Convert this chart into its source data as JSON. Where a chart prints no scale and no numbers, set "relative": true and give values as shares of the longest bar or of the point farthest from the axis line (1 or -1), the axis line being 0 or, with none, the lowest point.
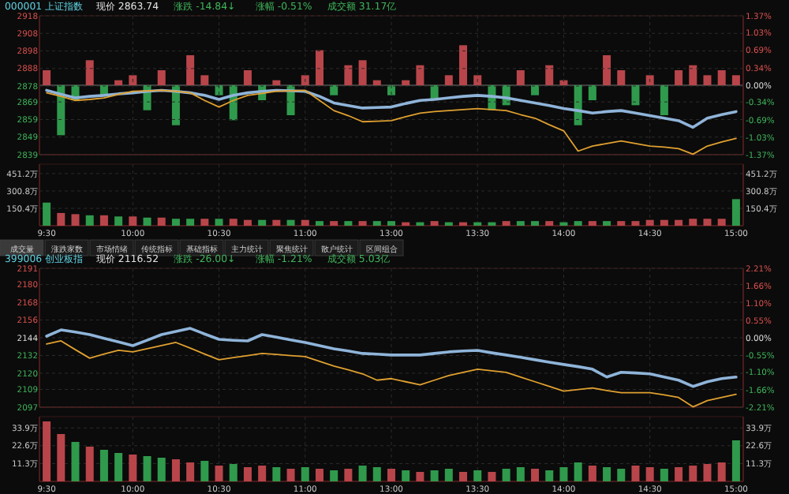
{
  "chart_data": [
    {
      "type": "line",
      "title": "000001 上证指数",
      "annotations": [
        "现价 2863.74",
        "涨跌 -14.84↓",
        "涨幅 -0.51%",
        "成交额 31.17亿"
      ],
      "categories": [
        null,
        null,
        null,
        null,
        null,
        null,
        null,
        null,
        null,
        null,
        null,
        null,
        null,
        null,
        null,
        null,
        null,
        null,
        null,
        null,
        null,
        null,
        null,
        null,
        null,
        null,
        null,
        null,
        null,
        null,
        null,
        null,
        null,
        null,
        null,
        null,
        null,
        null,
        null,
        null,
        null,
        null,
        null,
        null,
        null,
        null,
        null,
        null,
        null
      ],
      "tick_labels": "y",
      "ylim": [
        2839,
        2918
      ],
      "yticks": [
        2839,
        2849,
        2859,
        2869,
        2878,
        2888,
        2898,
        2908,
        2918
      ],
      "y2lim": [
        -1.37,
        1.37
      ],
      "y2ticks": [
        {
          "value": -1.37,
          "label": "-1.37%"
        },
        {
          "value": -1.03,
          "label": "-1.03%"
        },
        {
          "value": -0.69,
          "label": "-0.69%"
        },
        {
          "value": -0.34,
          "label": "-0.34%"
        },
        {
          "value": 0,
          "label": "0.00%"
        },
        {
          "value": 0.34,
          "label": "0.34%"
        },
        {
          "value": 0.69,
          "label": "0.69%"
        },
        {
          "value": 1.03,
          "label": "1.03%"
        },
        {
          "value": 1.37,
          "label": "1.37%"
        }
      ],
      "grid": true,
      "series": [
        {
          "axis": "y2",
          "color": "#8fb4d9",
          "values": [
            -0.1,
            -0.18,
            -0.25,
            -0.22,
            -0.2,
            -0.17,
            -0.15,
            -0.12,
            -0.1,
            -0.12,
            -0.15,
            -0.2,
            -0.28,
            -0.2,
            -0.15,
            -0.12,
            -0.1,
            -0.11,
            -0.12,
            -0.22,
            -0.35,
            -0.4,
            -0.45,
            -0.44,
            -0.43,
            -0.36,
            -0.3,
            -0.28,
            -0.25,
            -0.22,
            -0.2,
            -0.22,
            -0.25,
            -0.3,
            -0.35,
            -0.4,
            -0.46,
            -0.5,
            -0.55,
            -0.52,
            -0.5,
            -0.55,
            -0.6,
            -0.65,
            -0.7,
            -0.83,
            -0.65,
            -0.58,
            -0.52
          ]
        },
        {
          "axis": "y2",
          "color": "#e0a030",
          "values": [
            -0.15,
            -0.22,
            -0.3,
            -0.28,
            -0.25,
            -0.18,
            -0.12,
            -0.11,
            -0.1,
            -0.12,
            -0.15,
            -0.3,
            -0.43,
            -0.3,
            -0.2,
            -0.16,
            -0.12,
            -0.11,
            -0.1,
            -0.3,
            -0.5,
            -0.6,
            -0.72,
            -0.71,
            -0.7,
            -0.62,
            -0.55,
            -0.52,
            -0.5,
            -0.48,
            -0.46,
            -0.48,
            -0.5,
            -0.58,
            -0.65,
            -0.78,
            -0.9,
            -1.3,
            -1.2,
            -1.15,
            -1.1,
            -1.15,
            -1.2,
            -1.22,
            -1.25,
            -1.36,
            -1.2,
            -1.12,
            -1.05
          ]
        }
      ]
    },
    {
      "type": "bar",
      "relative": true,
      "tick_labels": false,
      "categories": [
        null,
        null,
        null,
        null,
        null,
        null,
        null,
        null,
        null,
        null,
        null,
        null,
        null,
        null,
        null,
        null,
        null,
        null,
        null,
        null,
        null,
        null,
        null,
        null,
        null,
        null,
        null,
        null,
        null,
        null,
        null,
        null,
        null,
        null,
        null,
        null,
        null,
        null,
        null,
        null,
        null,
        null,
        null,
        null,
        null,
        null,
        null,
        null,
        null
      ],
      "values": [
        0.3,
        -1.0,
        -0.3,
        0.5,
        -0.2,
        0.1,
        0.2,
        -0.5,
        0.3,
        -0.8,
        0.6,
        0.2,
        -0.2,
        -0.7,
        0.3,
        -0.3,
        0.1,
        -0.6,
        0.2,
        0.7,
        -0.2,
        0.4,
        0.5,
        0.1,
        -0.2,
        0.1,
        0.4,
        -0.3,
        0.2,
        0.8,
        0.2,
        -0.5,
        -0.4,
        0.3,
        -0.2,
        0.4,
        0.1,
        -0.8,
        -0.3,
        0.6,
        0.3,
        -0.4,
        0.2,
        -0.6,
        0.3,
        0.4,
        0.2,
        0.3,
        0.2
      ],
      "colors": [
        "#b8454a",
        "#2f9a4c",
        "#2f9a4c",
        "#b8454a",
        "#2f9a4c",
        "#b8454a",
        "#b8454a",
        "#2f9a4c",
        "#b8454a",
        "#2f9a4c",
        "#b8454a",
        "#b8454a",
        "#2f9a4c",
        "#2f9a4c",
        "#b8454a",
        "#2f9a4c",
        "#b8454a",
        "#2f9a4c",
        "#b8454a",
        "#b8454a",
        "#2f9a4c",
        "#b8454a",
        "#b8454a",
        "#b8454a",
        "#2f9a4c",
        "#b8454a",
        "#b8454a",
        "#2f9a4c",
        "#b8454a",
        "#b8454a",
        "#b8454a",
        "#2f9a4c",
        "#2f9a4c",
        "#b8454a",
        "#2f9a4c",
        "#b8454a",
        "#b8454a",
        "#2f9a4c",
        "#2f9a4c",
        "#b8454a",
        "#b8454a",
        "#2f9a4c",
        "#b8454a",
        "#2f9a4c",
        "#b8454a",
        "#b8454a",
        "#b8454a",
        "#b8454a",
        "#b8454a"
      ]
    },
    {
      "type": "bar",
      "annotations": [
        "成交量",
        "涨跌家数",
        "市场情绪",
        "传统指标",
        "基础指标",
        "主力统计",
        "聚焦统计",
        "散户统计",
        "区间组合"
      ],
      "categories": [
        "9:30",
        null,
        null,
        null,
        null,
        null,
        "10:00",
        null,
        null,
        null,
        null,
        null,
        "10:30",
        null,
        null,
        null,
        null,
        null,
        "11:00",
        null,
        null,
        null,
        null,
        null,
        "13:00",
        null,
        null,
        null,
        null,
        null,
        "13:30",
        null,
        null,
        null,
        null,
        null,
        "14:00",
        null,
        null,
        null,
        null,
        null,
        "14:30",
        null,
        null,
        null,
        null,
        null,
        "15:00"
      ],
      "ylim": [
        0,
        533
      ],
      "yticks": [
        {
          "value": 150.4,
          "label": "150.4万"
        },
        {
          "value": 300.8,
          "label": "300.8万"
        },
        {
          "value": 451.2,
          "label": "451.2万"
        }
      ],
      "y2lim": [
        0,
        533
      ],
      "y2ticks": [
        {
          "value": 150.4,
          "label": "150.4万"
        },
        {
          "value": 300.8,
          "label": "300.8万"
        },
        {
          "value": 451.2,
          "label": "451.2万"
        }
      ],
      "grid": true,
      "values": [
        200,
        110,
        100,
        90,
        90,
        80,
        80,
        70,
        70,
        60,
        60,
        60,
        60,
        60,
        50,
        50,
        50,
        50,
        50,
        40,
        40,
        40,
        40,
        40,
        40,
        30,
        30,
        40,
        30,
        30,
        30,
        30,
        40,
        40,
        40,
        40,
        30,
        40,
        40,
        40,
        40,
        40,
        50,
        50,
        50,
        60,
        60,
        60,
        230
      ],
      "colors": [
        "#2f9a4c",
        "#b8454a",
        "#b8454a",
        "#2f9a4c",
        "#b8454a",
        "#2f9a4c",
        "#b8454a",
        "#2f9a4c",
        "#b8454a",
        "#2f9a4c",
        "#2f9a4c",
        "#b8454a",
        "#2f9a4c",
        "#b8454a",
        "#b8454a",
        "#2f9a4c",
        "#b8454a",
        "#2f9a4c",
        "#b8454a",
        "#2f9a4c",
        "#b8454a",
        "#2f9a4c",
        "#b8454a",
        "#2f9a4c",
        "#2f9a4c",
        "#b8454a",
        "#2f9a4c",
        "#b8454a",
        "#2f9a4c",
        "#b8454a",
        "#2f9a4c",
        "#2f9a4c",
        "#b8454a",
        "#2f9a4c",
        "#2f9a4c",
        "#b8454a",
        "#2f9a4c",
        "#2f9a4c",
        "#b8454a",
        "#2f9a4c",
        "#b8454a",
        "#b8454a",
        "#b8454a",
        "#b8454a",
        "#b8454a",
        "#b8454a",
        "#b8454a",
        "#b8454a",
        "#2f9a4c"
      ]
    },
    {
      "type": "line",
      "title": "399006 创业板指",
      "annotations": [
        "现价 2116.52",
        "涨跌 -26.00↓",
        "涨幅 -1.21%",
        "成交额 5.03亿"
      ],
      "categories": [
        null,
        null,
        null,
        null,
        null,
        null,
        null,
        null,
        null,
        null,
        null,
        null,
        null,
        null,
        null,
        null,
        null,
        null,
        null,
        null,
        null,
        null,
        null,
        null,
        null,
        null,
        null,
        null,
        null,
        null,
        null,
        null,
        null,
        null,
        null,
        null,
        null,
        null,
        null,
        null,
        null,
        null,
        null,
        null,
        null,
        null,
        null,
        null,
        null
      ],
      "tick_labels": "y",
      "ylim": [
        2097,
        2191
      ],
      "yticks": [
        2097,
        2109,
        2120,
        2132,
        2144,
        2156,
        2168,
        2180,
        2191
      ],
      "y2lim": [
        -2.21,
        2.21
      ],
      "y2ticks": [
        {
          "value": -2.21,
          "label": "-2.21%"
        },
        {
          "value": -1.66,
          "label": "-1.66%"
        },
        {
          "value": -1.1,
          "label": "-1.10%"
        },
        {
          "value": -0.55,
          "label": "-0.55%"
        },
        {
          "value": 0,
          "label": "0.00%"
        },
        {
          "value": 0.55,
          "label": "0.55%"
        },
        {
          "value": 1.1,
          "label": "1.10%"
        },
        {
          "value": 1.66,
          "label": "1.66%"
        },
        {
          "value": 2.21,
          "label": "2.21%"
        }
      ],
      "grid": true,
      "series": [
        {
          "axis": "y2",
          "color": "#8fb4d9",
          "values": [
            0.05,
            0.25,
            0.18,
            0.1,
            -0.02,
            -0.13,
            -0.25,
            -0.08,
            0.1,
            0.2,
            0.3,
            0.12,
            -0.05,
            -0.08,
            -0.1,
            0.1,
            0.02,
            -0.07,
            -0.15,
            -0.25,
            -0.35,
            -0.42,
            -0.5,
            -0.52,
            -0.55,
            -0.55,
            -0.55,
            -0.5,
            -0.45,
            -0.42,
            -0.4,
            -0.48,
            -0.55,
            -0.62,
            -0.7,
            -0.78,
            -0.85,
            -0.92,
            -1.0,
            -1.25,
            -1.1,
            -1.12,
            -1.15,
            -1.25,
            -1.35,
            -1.55,
            -1.4,
            -1.3,
            -1.25
          ]
        },
        {
          "axis": "y2",
          "color": "#e0a030",
          "values": [
            -0.2,
            -0.1,
            -0.38,
            -0.65,
            -0.52,
            -0.4,
            -0.45,
            -0.35,
            -0.25,
            -0.15,
            -0.33,
            -0.52,
            -0.7,
            -0.63,
            -0.57,
            -0.5,
            -0.53,
            -0.57,
            -0.6,
            -0.75,
            -0.9,
            -1.02,
            -1.15,
            -1.35,
            -1.3,
            -1.4,
            -1.5,
            -1.35,
            -1.2,
            -1.1,
            -1.0,
            -1.05,
            -1.1,
            -1.25,
            -1.4,
            -1.55,
            -1.7,
            -1.65,
            -1.6,
            -1.68,
            -1.75,
            -1.75,
            -1.75,
            -1.82,
            -1.9,
            -2.2,
            -2.0,
            -1.9,
            -1.8
          ]
        }
      ]
    },
    {
      "type": "bar",
      "categories": [
        "9:30",
        null,
        null,
        null,
        null,
        null,
        "10:00",
        null,
        null,
        null,
        null,
        null,
        "10:30",
        null,
        null,
        null,
        null,
        null,
        "11:00",
        null,
        null,
        null,
        null,
        null,
        "13:00",
        null,
        null,
        null,
        null,
        null,
        "13:30",
        null,
        null,
        null,
        null,
        null,
        "14:00",
        null,
        null,
        null,
        null,
        null,
        "14:30",
        null,
        null,
        null,
        null,
        null,
        "15:00"
      ],
      "ylim": [
        0,
        41
      ],
      "yticks": [
        {
          "value": 11.3,
          "label": "11.3万"
        },
        {
          "value": 22.6,
          "label": "22.6万"
        },
        {
          "value": 33.9,
          "label": "33.9万"
        }
      ],
      "y2lim": [
        0,
        41
      ],
      "y2ticks": [
        {
          "value": 11.3,
          "label": "11.3万"
        },
        {
          "value": 22.6,
          "label": "22.6万"
        },
        {
          "value": 33.9,
          "label": "33.9万"
        }
      ],
      "grid": true,
      "values": [
        38,
        30,
        25,
        22,
        20,
        18,
        17,
        16,
        15,
        14,
        12,
        13,
        10,
        11,
        9,
        10,
        9,
        8,
        9,
        8,
        7,
        8,
        10,
        9,
        8,
        7,
        6,
        7,
        8,
        6,
        7,
        6,
        8,
        9,
        8,
        7,
        9,
        12,
        10,
        9,
        8,
        10,
        9,
        8,
        9,
        10,
        11,
        12,
        26
      ],
      "colors": [
        "#b8454a",
        "#b8454a",
        "#2f9a4c",
        "#b8454a",
        "#2f9a4c",
        "#2f9a4c",
        "#b8454a",
        "#2f9a4c",
        "#2f9a4c",
        "#b8454a",
        "#b8454a",
        "#2f9a4c",
        "#b8454a",
        "#2f9a4c",
        "#b8454a",
        "#b8454a",
        "#2f9a4c",
        "#b8454a",
        "#2f9a4c",
        "#b8454a",
        "#2f9a4c",
        "#b8454a",
        "#2f9a4c",
        "#2f9a4c",
        "#b8454a",
        "#2f9a4c",
        "#b8454a",
        "#2f9a4c",
        "#2f9a4c",
        "#b8454a",
        "#2f9a4c",
        "#b8454a",
        "#2f9a4c",
        "#2f9a4c",
        "#b8454a",
        "#2f9a4c",
        "#2f9a4c",
        "#2f9a4c",
        "#b8454a",
        "#2f9a4c",
        "#2f9a4c",
        "#b8454a",
        "#b8454a",
        "#2f9a4c",
        "#b8454a",
        "#b8454a",
        "#b8454a",
        "#b8454a",
        "#2f9a4c"
      ]
    }
  ]
}
